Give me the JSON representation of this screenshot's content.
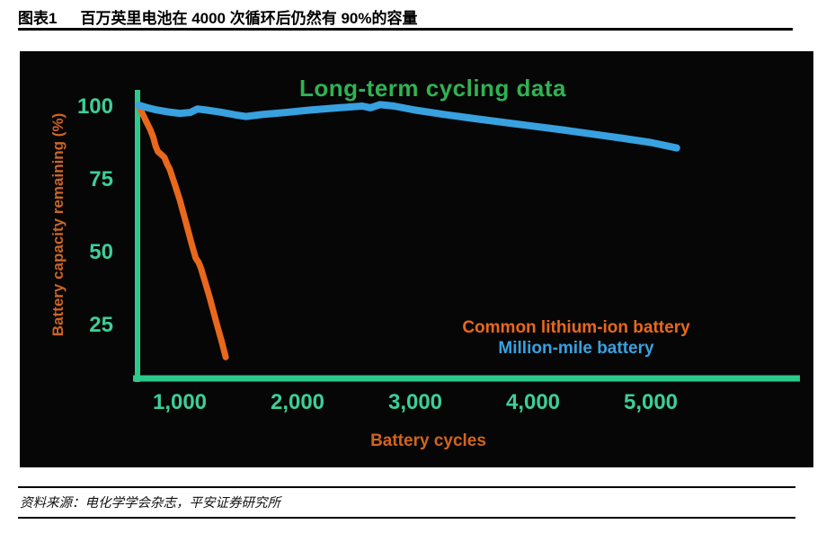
{
  "header": {
    "label": "图表1",
    "title": "百万英里电池在 4000 次循环后仍然有 90%的容量"
  },
  "footer": {
    "source": "资料来源：电化学学会杂志，平安证券研究所"
  },
  "chart_data": {
    "type": "line",
    "title": "Long-term cycling data",
    "xlabel": "Battery cycles",
    "ylabel": "Battery capacity remaining (%)",
    "x_ticks": [
      1000,
      2000,
      3000,
      4000,
      5000
    ],
    "x_tick_labels": [
      "1,000",
      "2,000",
      "3,000",
      "4,000",
      "5,000"
    ],
    "y_ticks": [
      25,
      50,
      75,
      100
    ],
    "xlim": [
      640,
      5500
    ],
    "ylim": [
      5,
      107
    ],
    "grid": false,
    "legend_position": "lower-right",
    "colors": {
      "panel_background": "#060606",
      "axis": "#2cc98b",
      "tick_labels": "#3ccf99",
      "title": "#2fb351",
      "xlabel": "#d2641e",
      "ylabel": "#cc6526"
    },
    "series": [
      {
        "name": "Common lithium-ion battery",
        "color": "#e9681c",
        "points": [
          [
            650,
            100
          ],
          [
            690,
            96.5
          ],
          [
            720,
            94
          ],
          [
            750,
            91.5
          ],
          [
            775,
            89
          ],
          [
            795,
            86
          ],
          [
            815,
            84
          ],
          [
            845,
            83
          ],
          [
            870,
            82
          ],
          [
            890,
            80
          ],
          [
            915,
            78
          ],
          [
            960,
            72.5
          ],
          [
            1000,
            67.5
          ],
          [
            1050,
            60
          ],
          [
            1100,
            52.5
          ],
          [
            1135,
            47.5
          ],
          [
            1160,
            46
          ],
          [
            1180,
            44
          ],
          [
            1195,
            42
          ],
          [
            1250,
            34.5
          ],
          [
            1310,
            25.5
          ],
          [
            1355,
            19
          ],
          [
            1390,
            13.5
          ]
        ]
      },
      {
        "name": "Million-mile battery",
        "color": "#38a1e0",
        "points": [
          [
            650,
            100
          ],
          [
            720,
            99.2
          ],
          [
            800,
            98.4
          ],
          [
            900,
            97.7
          ],
          [
            1000,
            97.2
          ],
          [
            1090,
            97.5
          ],
          [
            1150,
            98.7
          ],
          [
            1230,
            98.3
          ],
          [
            1350,
            97.6
          ],
          [
            1480,
            96.6
          ],
          [
            1560,
            96.1
          ],
          [
            1700,
            96.8
          ],
          [
            1900,
            97.5
          ],
          [
            2100,
            98.3
          ],
          [
            2350,
            99.1
          ],
          [
            2550,
            99.7
          ],
          [
            2620,
            99.1
          ],
          [
            2700,
            100.2
          ],
          [
            2820,
            99.7
          ],
          [
            3000,
            98.3
          ],
          [
            3250,
            96.8
          ],
          [
            3500,
            95.4
          ],
          [
            3750,
            94.1
          ],
          [
            4000,
            92.8
          ],
          [
            4250,
            91.5
          ],
          [
            4500,
            90.1
          ],
          [
            4750,
            88.7
          ],
          [
            5000,
            87.2
          ],
          [
            5220,
            85.3
          ]
        ]
      }
    ]
  }
}
